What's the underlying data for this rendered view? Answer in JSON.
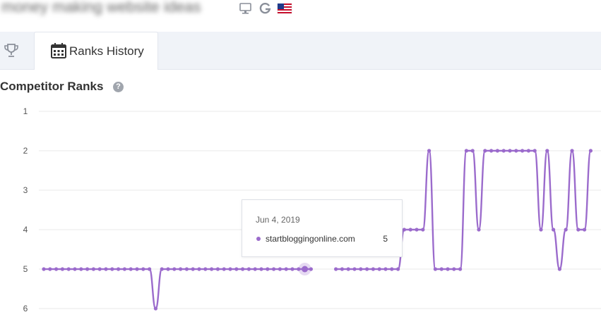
{
  "top": {
    "keyword": "money making website ideas",
    "icons": [
      "desktop-icon",
      "google-icon",
      "us-flag-icon"
    ]
  },
  "tabs": [
    {
      "name": "trophy-tab",
      "icon": "trophy-icon",
      "label": ""
    },
    {
      "name": "ranks-history-tab",
      "icon": "calendar-icon",
      "label": "Ranks History"
    }
  ],
  "section": {
    "title": "Competitor Ranks",
    "help": "?"
  },
  "tooltip": {
    "date": "Jun 4, 2019",
    "site": "startbloggingonline.com",
    "value": "5"
  },
  "colors": {
    "series": "#9b6bcc",
    "grid": "#e8e8e8",
    "tab_bg": "#f0f3f8"
  },
  "chart_data": {
    "type": "line",
    "y_ticks": [
      "1",
      "2",
      "3",
      "4",
      "5",
      "6"
    ],
    "ylim": [
      1,
      6
    ],
    "y_inverted": true,
    "grid": true,
    "series": [
      {
        "name": "startbloggingonline.com",
        "values": [
          5,
          5,
          5,
          5,
          5,
          5,
          5,
          5,
          5,
          5,
          5,
          5,
          5,
          5,
          5,
          5,
          5,
          5,
          6,
          5,
          5,
          5,
          5,
          5,
          5,
          5,
          5,
          5,
          5,
          5,
          5,
          5,
          5,
          5,
          5,
          5,
          5,
          5,
          5,
          5,
          5,
          5,
          5,
          5,
          5,
          5,
          5,
          5,
          5,
          5,
          5,
          5,
          5,
          5,
          5,
          5,
          5,
          5,
          4,
          4,
          4,
          4,
          2,
          5,
          5,
          5,
          5,
          5,
          2,
          2,
          4,
          2,
          2,
          2,
          2,
          2,
          2,
          2,
          2,
          2,
          4,
          2,
          4,
          5,
          4,
          2,
          4,
          4,
          2
        ],
        "highlight_index": 42,
        "hidden_range": [
          43,
          47
        ]
      }
    ]
  }
}
